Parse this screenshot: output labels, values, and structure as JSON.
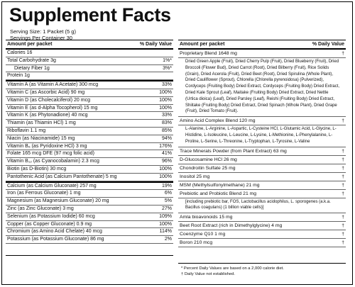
{
  "title": "Supplement Facts",
  "serving_size": "Serving Size: 1 Packet (5 g)",
  "servings_per_container": "Servings Per Container 30",
  "left": {
    "header": {
      "amount": "Amount per packet",
      "dv": "% Daily Value"
    },
    "groups": [
      [
        {
          "name": "Calories 16"
        },
        {
          "name": "Total Carbohydrate 3g",
          "dv": "1%*",
          "sub": [
            {
              "name": "Dietary Fiber 1g",
              "dv": "3%*"
            }
          ]
        },
        {
          "name": "Protein 1g"
        }
      ],
      [
        {
          "name": "Vitamin A (as Vitamin A Acetate) 300 mcg",
          "dv": "33%"
        },
        {
          "name": "Vitamin C (as Ascorbic Acid) 90 mg",
          "dv": "100%"
        },
        {
          "name": "Vitamin D (as Cholecalciferol) 20 mcg",
          "dv": "100%"
        },
        {
          "name": "Vitamin E (as d-Alpha Tocopherol) 15 mg",
          "dv": "100%"
        },
        {
          "name": "Vitamin K (as Phytonadione) 40 mcg",
          "dv": "33%"
        },
        {
          "name": "Thiamin (as Thiamin HCl) 1 mg",
          "dv": "83%"
        },
        {
          "name": "Riboflavin 1.1 mg",
          "dv": "85%"
        },
        {
          "name": "Niacin (as Niacinamide) 15 mg",
          "dv": "94%"
        },
        {
          "name": "Vitamin B₆ (as Pyridoxine HCl) 3 mg",
          "dv": "176%"
        },
        {
          "name": "Folate 165 mcg DFE (97 mcg folic acid)",
          "dv": "41%"
        },
        {
          "name": "Vitamin B₁₂ (as Cyanocobalamin) 2.3 mcg",
          "dv": "96%"
        },
        {
          "name": "Biotin (as D-Biotin) 30 mcg",
          "dv": "100%"
        },
        {
          "name": "Pantothenic Acid (as Calcium Pantothenate) 5 mg",
          "dv": "100%"
        }
      ],
      [
        {
          "name": "Calcium (as Calcium Gluconate) 257 mg",
          "dv": "19%"
        },
        {
          "name": "Iron (as Ferrous Gluconate) 1 mg",
          "dv": "6%"
        },
        {
          "name": "Magnesium (as Magnesium Gluconate) 20 mg",
          "dv": "5%"
        },
        {
          "name": "Zinc (as Zinc Gluconate) 3 mg",
          "dv": "27%"
        },
        {
          "name": "Selenium (as Potassium Iodide) 60 mcg",
          "dv": "109%"
        },
        {
          "name": "Copper (as Copper Gluconate) 0.9 mg",
          "dv": "100%"
        },
        {
          "name": "Chromium (as Amino Acid Chelate) 40 mcg",
          "dv": "114%"
        },
        {
          "name": "Potassium (as Potassium Gluconate) 86 mg",
          "dv": "2%"
        }
      ]
    ]
  },
  "right": {
    "header": {
      "amount": "Amount per packet",
      "dv": "% Daily Value"
    },
    "items": [
      {
        "name": "Proprietary Blend 1648 mg",
        "dv": "†",
        "detail": "Dried Green Apple (Fruit), Dried Cherry Pulp (Fruit), Dried Blueberry (Fruit), Dried Broccoli (Flower Bud), Dried Carrot (Root), Dried Bilberry (Fruit), Rice Solids (Grain), Dried Acerola (Fruit), Dried Beet (Root), Dried Spirulina (Whole Plant), Dried Cauliflower (Sprout), Chlorella (Chlorella pyrenoidosa) (Pulverized), Cordyceps (Fruiting Body) Dried Extract, Cordyceps (Fruiting Body) Dried Extract, Dried Kale Sprout (Leaf), Maitake (Fruiting Body) Dried Extract, Dried Nettle (Urtica dioica) (Leaf), Dried Parsley (Leaf), Reishi (Fruiting Body) Dried Extract, Shiitake (Fruiting Body) Dried Extract, Dried Spinach (Whole Plant), Dried Grape (Fruit), Dried Tomato (Fruit)."
      },
      {
        "name": "Amino Acid Complex Blend 120 mg",
        "dv": "†",
        "detail": "L-Alanine, L-Arginine, L-Aspartic, L-Cysteine HCl, L-Glutamic Acid, L-Glycine, L-Histidine, L-Isoleucine, L-Leucine, L-Lysine, L-Methionine, L-Phenylalanine, L-Proline, L-Serine, L-Threonine, L-Tryptophan, L-Tyrosine, L-Valine"
      },
      {
        "name": "Trace Minerals Powder (from Plant Extract) 63 mg",
        "dv": "†"
      },
      {
        "name": "D-Glucosamine HCl 26 mg",
        "dv": "†"
      },
      {
        "name": "Chondroitin Sulfate 25 mg",
        "dv": "†"
      },
      {
        "name": "Inositol 25 mg",
        "dv": "†"
      },
      {
        "name": "MSM (Methylsulfonylmethane) 21 mg",
        "dv": "†"
      },
      {
        "name": "Prebiotic and Probiotic Blend 21 mg",
        "dv": "†",
        "detail": "[including prebiotic bar, FOS, Lactobacillus acidophilus, L. sporogenes (a.k.a. Bacillus coagulans) (1 billion viable cells)]"
      },
      {
        "name": "Amla bioavonoids 15 mg",
        "dv": "†"
      },
      {
        "name": "Beet Root Extract (rich in Dimethylglycine) 4 mg",
        "dv": "†"
      },
      {
        "name": "Coenzyme Q10 1 mg",
        "dv": "†"
      },
      {
        "name": "Boron 210 mcg",
        "dv": "†"
      }
    ]
  },
  "footnotes": [
    "* Percent Daily Values are based on a 2,000 calorie diet.",
    "† Daily Value not established."
  ]
}
